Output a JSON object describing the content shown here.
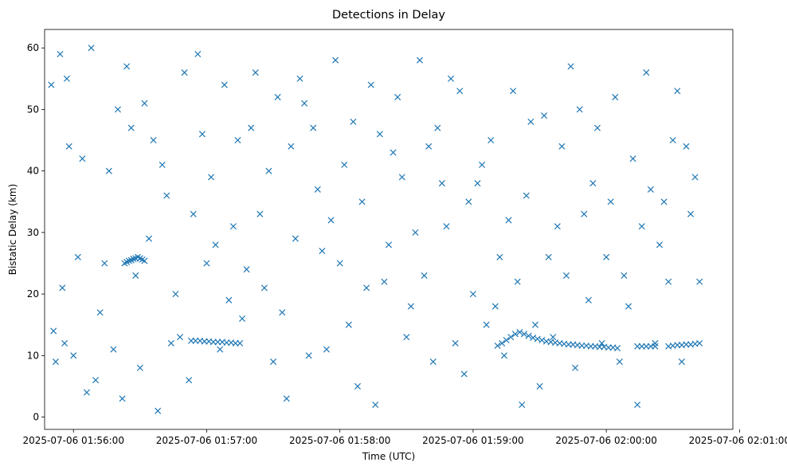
{
  "chart_data": {
    "type": "scatter",
    "title": "Detections in Delay",
    "xlabel": "Time (UTC)",
    "ylabel": "Bistatic Delay (km)",
    "xlim": [
      "2025-07-06 01:55:47",
      "2025-07-06 02:00:57"
    ],
    "ylim": [
      -2,
      63
    ],
    "grid": false,
    "legend": "none",
    "marker": "x",
    "color": "#1f77b4",
    "x_ticks": [
      "2025-07-06 01:56:00",
      "2025-07-06 01:57:00",
      "2025-07-06 01:58:00",
      "2025-07-06 01:59:00",
      "2025-07-06 02:00:00",
      "2025-07-06 02:01:00"
    ],
    "y_ticks": [
      "0",
      "10",
      "20",
      "30",
      "40",
      "50",
      "60"
    ],
    "series": [
      {
        "x": [
          "2025-07-06 01:55:50",
          "2025-07-06 01:55:51",
          "2025-07-06 01:55:52",
          "2025-07-06 01:55:54",
          "2025-07-06 01:55:55",
          "2025-07-06 01:55:56",
          "2025-07-06 01:55:57",
          "2025-07-06 01:55:58",
          "2025-07-06 01:56:00",
          "2025-07-06 01:56:02",
          "2025-07-06 01:56:04",
          "2025-07-06 01:56:06",
          "2025-07-06 01:56:08",
          "2025-07-06 01:56:10",
          "2025-07-06 01:56:12",
          "2025-07-06 01:56:14",
          "2025-07-06 01:56:16",
          "2025-07-06 01:56:18",
          "2025-07-06 01:56:20",
          "2025-07-06 01:56:22",
          "2025-07-06 01:56:24",
          "2025-07-06 01:56:26",
          "2025-07-06 01:56:28",
          "2025-07-06 01:56:30",
          "2025-07-06 01:56:32",
          "2025-07-06 01:56:34",
          "2025-07-06 01:56:36",
          "2025-07-06 01:56:38",
          "2025-07-06 01:56:40",
          "2025-07-06 01:56:42",
          "2025-07-06 01:56:44",
          "2025-07-06 01:56:46",
          "2025-07-06 01:56:48",
          "2025-07-06 01:56:50",
          "2025-07-06 01:56:52",
          "2025-07-06 01:56:54",
          "2025-07-06 01:56:56",
          "2025-07-06 01:56:58",
          "2025-07-06 01:57:00",
          "2025-07-06 01:57:02",
          "2025-07-06 01:57:04",
          "2025-07-06 01:57:06",
          "2025-07-06 01:57:08",
          "2025-07-06 01:57:10",
          "2025-07-06 01:57:12",
          "2025-07-06 01:57:14",
          "2025-07-06 01:57:16",
          "2025-07-06 01:57:18",
          "2025-07-06 01:57:20",
          "2025-07-06 01:57:22",
          "2025-07-06 01:57:24",
          "2025-07-06 01:57:26",
          "2025-07-06 01:57:28",
          "2025-07-06 01:57:30",
          "2025-07-06 01:57:32",
          "2025-07-06 01:57:34",
          "2025-07-06 01:57:36",
          "2025-07-06 01:57:38",
          "2025-07-06 01:57:40",
          "2025-07-06 01:57:42",
          "2025-07-06 01:57:44",
          "2025-07-06 01:57:46",
          "2025-07-06 01:57:48",
          "2025-07-06 01:57:50",
          "2025-07-06 01:57:52",
          "2025-07-06 01:57:54",
          "2025-07-06 01:57:56",
          "2025-07-06 01:57:58",
          "2025-07-06 01:58:00",
          "2025-07-06 01:58:02",
          "2025-07-06 01:58:04",
          "2025-07-06 01:58:06",
          "2025-07-06 01:58:08",
          "2025-07-06 01:58:10",
          "2025-07-06 01:58:12",
          "2025-07-06 01:58:14",
          "2025-07-06 01:58:16",
          "2025-07-06 01:58:18",
          "2025-07-06 01:58:20",
          "2025-07-06 01:58:22",
          "2025-07-06 01:58:24",
          "2025-07-06 01:58:26",
          "2025-07-06 01:58:28",
          "2025-07-06 01:58:30",
          "2025-07-06 01:58:32",
          "2025-07-06 01:58:34",
          "2025-07-06 01:58:36",
          "2025-07-06 01:58:38",
          "2025-07-06 01:58:40",
          "2025-07-06 01:58:42",
          "2025-07-06 01:58:44",
          "2025-07-06 01:58:46",
          "2025-07-06 01:58:48",
          "2025-07-06 01:58:50",
          "2025-07-06 01:58:52",
          "2025-07-06 01:58:54",
          "2025-07-06 01:58:56",
          "2025-07-06 01:58:58",
          "2025-07-06 01:59:00",
          "2025-07-06 01:59:02",
          "2025-07-06 01:59:04",
          "2025-07-06 01:59:06",
          "2025-07-06 01:59:08",
          "2025-07-06 01:59:10",
          "2025-07-06 01:59:12",
          "2025-07-06 01:59:14",
          "2025-07-06 01:59:16",
          "2025-07-06 01:59:18",
          "2025-07-06 01:59:20",
          "2025-07-06 01:59:22",
          "2025-07-06 01:59:24",
          "2025-07-06 01:59:26",
          "2025-07-06 01:59:28",
          "2025-07-06 01:59:30",
          "2025-07-06 01:59:32",
          "2025-07-06 01:59:34",
          "2025-07-06 01:59:36",
          "2025-07-06 01:59:38",
          "2025-07-06 01:59:40",
          "2025-07-06 01:59:42",
          "2025-07-06 01:59:44",
          "2025-07-06 01:59:46",
          "2025-07-06 01:59:48",
          "2025-07-06 01:59:50",
          "2025-07-06 01:59:52",
          "2025-07-06 01:59:54",
          "2025-07-06 01:59:56",
          "2025-07-06 01:59:58",
          "2025-07-06 02:00:00",
          "2025-07-06 02:00:02",
          "2025-07-06 02:00:04",
          "2025-07-06 02:00:06",
          "2025-07-06 02:00:08",
          "2025-07-06 02:00:10",
          "2025-07-06 02:00:12",
          "2025-07-06 02:00:14",
          "2025-07-06 02:00:16",
          "2025-07-06 02:00:18",
          "2025-07-06 02:00:20",
          "2025-07-06 02:00:22",
          "2025-07-06 02:00:24",
          "2025-07-06 02:00:26",
          "2025-07-06 02:00:28",
          "2025-07-06 02:00:30",
          "2025-07-06 02:00:32",
          "2025-07-06 02:00:34",
          "2025-07-06 02:00:36",
          "2025-07-06 02:00:38",
          "2025-07-06 02:00:40",
          "2025-07-06 02:00:42",
          "2025-07-06 01:56:23",
          "2025-07-06 01:56:24",
          "2025-07-06 01:56:25",
          "2025-07-06 01:56:26",
          "2025-07-06 01:56:27",
          "2025-07-06 01:56:28",
          "2025-07-06 01:56:29",
          "2025-07-06 01:56:30",
          "2025-07-06 01:56:31",
          "2025-07-06 01:56:32",
          "2025-07-06 01:56:53",
          "2025-07-06 01:56:55",
          "2025-07-06 01:56:57",
          "2025-07-06 01:56:59",
          "2025-07-06 01:57:01",
          "2025-07-06 01:57:03",
          "2025-07-06 01:57:05",
          "2025-07-06 01:57:07",
          "2025-07-06 01:57:09",
          "2025-07-06 01:57:11",
          "2025-07-06 01:57:13",
          "2025-07-06 01:57:15",
          "2025-07-06 01:59:11",
          "2025-07-06 01:59:13",
          "2025-07-06 01:59:15",
          "2025-07-06 01:59:17",
          "2025-07-06 01:59:19",
          "2025-07-06 01:59:21",
          "2025-07-06 01:59:23",
          "2025-07-06 01:59:25",
          "2025-07-06 01:59:27",
          "2025-07-06 01:59:29",
          "2025-07-06 01:59:31",
          "2025-07-06 01:59:33",
          "2025-07-06 01:59:35",
          "2025-07-06 01:59:37",
          "2025-07-06 01:59:39",
          "2025-07-06 01:59:41",
          "2025-07-06 01:59:43",
          "2025-07-06 01:59:45",
          "2025-07-06 01:59:47",
          "2025-07-06 01:59:49",
          "2025-07-06 01:59:51",
          "2025-07-06 01:59:53",
          "2025-07-06 01:59:55",
          "2025-07-06 01:59:57",
          "2025-07-06 01:59:59",
          "2025-07-06 02:00:01",
          "2025-07-06 02:00:03",
          "2025-07-06 02:00:05",
          "2025-07-06 02:00:14",
          "2025-07-06 02:00:16",
          "2025-07-06 02:00:18",
          "2025-07-06 02:00:20",
          "2025-07-06 02:00:22",
          "2025-07-06 02:00:28",
          "2025-07-06 02:00:30",
          "2025-07-06 02:00:32",
          "2025-07-06 02:00:34",
          "2025-07-06 02:00:36",
          "2025-07-06 02:00:38",
          "2025-07-06 02:00:40",
          "2025-07-06 02:00:42"
        ],
        "y": [
          54,
          14,
          9,
          59,
          21,
          12,
          55,
          44,
          10,
          26,
          42,
          4,
          60,
          6,
          17,
          25,
          40,
          11,
          50,
          3,
          57,
          47,
          23,
          8,
          51,
          29,
          45,
          1,
          41,
          36,
          12,
          20,
          13,
          56,
          6,
          33,
          59,
          46,
          25,
          39,
          28,
          11,
          54,
          19,
          31,
          45,
          16,
          24,
          47,
          56,
          33,
          21,
          40,
          9,
          52,
          17,
          3,
          44,
          29,
          55,
          51,
          10,
          47,
          37,
          27,
          11,
          32,
          58,
          25,
          41,
          15,
          48,
          5,
          35,
          21,
          54,
          2,
          46,
          22,
          28,
          43,
          52,
          39,
          13,
          18,
          30,
          58,
          23,
          44,
          9,
          47,
          38,
          31,
          55,
          12,
          53,
          7,
          35,
          20,
          38,
          41,
          15,
          45,
          18,
          26,
          10,
          32,
          53,
          22,
          2,
          36,
          48,
          15,
          5,
          49,
          26,
          13,
          31,
          44,
          23,
          57,
          8,
          50,
          33,
          19,
          38,
          47,
          12,
          26,
          35,
          52,
          9,
          23,
          18,
          42,
          2,
          31,
          56,
          37,
          12,
          28,
          35,
          22,
          45,
          53,
          9,
          44,
          33,
          39,
          22,
          25,
          25.2,
          25.4,
          25.5,
          25.7,
          25.8,
          26,
          25.8,
          25.6,
          25.4,
          12.4,
          12.4,
          12.4,
          12.3,
          12.3,
          12.2,
          12.2,
          12.2,
          12.1,
          12.1,
          12,
          12,
          11.6,
          12,
          12.5,
          13,
          13.5,
          13.8,
          13.5,
          13.2,
          12.9,
          12.7,
          12.5,
          12.3,
          12.2,
          12.1,
          12,
          11.9,
          11.8,
          11.8,
          11.7,
          11.6,
          11.6,
          11.5,
          11.5,
          11.4,
          11.4,
          11.3,
          11.3,
          11.2,
          11.5,
          11.5,
          11.5,
          11.5,
          11.5,
          11.5,
          11.6,
          11.7,
          11.7,
          11.8,
          11.8,
          11.9,
          12
        ]
      }
    ]
  }
}
